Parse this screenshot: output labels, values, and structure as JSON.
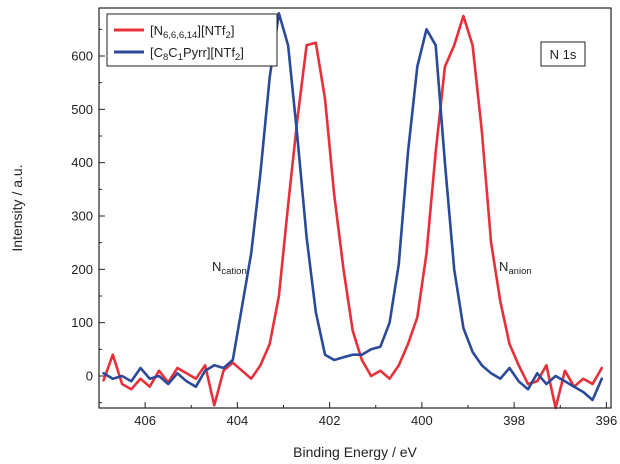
{
  "chart_data": {
    "type": "line",
    "xlabel": "Binding Energy / eV",
    "ylabel": "Intensity / a.u.",
    "xlim": [
      407.0,
      395.9
    ],
    "ylim": [
      -60,
      690
    ],
    "x_reversed": true,
    "x_ticks": [
      406,
      404,
      402,
      400,
      398,
      396
    ],
    "y_ticks": [
      0,
      100,
      200,
      300,
      400,
      500,
      600
    ],
    "panel_label": "N 1s",
    "legend_position": "top-left",
    "annotations": [
      {
        "main": "N",
        "sub": "cation",
        "x": 404.4,
        "y": 190
      },
      {
        "main": "N",
        "sub": "anion",
        "x": 398.5,
        "y": 190
      }
    ],
    "series": [
      {
        "color": "#e8303a",
        "legend": {
          "pre": "[N",
          "sub": "6,6,6,14",
          "mid": "][NTf",
          "sub2": "2",
          "post": "]"
        },
        "x": [
          406.9,
          406.7,
          406.5,
          406.3,
          406.1,
          405.9,
          405.7,
          405.5,
          405.3,
          405.1,
          404.9,
          404.7,
          404.5,
          404.3,
          404.1,
          403.9,
          403.7,
          403.5,
          403.3,
          403.1,
          402.9,
          402.7,
          402.5,
          402.3,
          402.1,
          401.9,
          401.7,
          401.5,
          401.3,
          401.1,
          400.9,
          400.7,
          400.5,
          400.3,
          400.1,
          399.9,
          399.7,
          399.5,
          399.3,
          399.1,
          398.9,
          398.7,
          398.5,
          398.3,
          398.1,
          397.9,
          397.7,
          397.5,
          397.3,
          397.1,
          396.9,
          396.7,
          396.5,
          396.3,
          396.1
        ],
        "y": [
          -8,
          40,
          -15,
          -25,
          -5,
          -20,
          10,
          -12,
          15,
          5,
          -5,
          20,
          -55,
          10,
          25,
          10,
          -5,
          20,
          60,
          150,
          320,
          480,
          620,
          625,
          520,
          340,
          200,
          85,
          30,
          0,
          10,
          -5,
          20,
          60,
          110,
          230,
          420,
          580,
          620,
          675,
          620,
          460,
          250,
          140,
          60,
          20,
          -15,
          -10,
          20,
          -60,
          10,
          -20,
          -5,
          -15,
          15
        ]
      },
      {
        "color": "#2b4a9a",
        "legend": {
          "pre": "[C",
          "sub": "8",
          "mid": "C",
          "sub2": "1",
          "post": "Pyrr][NTf",
          "sub3": "2",
          "post2": "]"
        },
        "x": [
          406.9,
          406.7,
          406.5,
          406.3,
          406.1,
          405.9,
          405.7,
          405.5,
          405.3,
          405.1,
          404.9,
          404.7,
          404.5,
          404.3,
          404.1,
          403.9,
          403.7,
          403.5,
          403.3,
          403.1,
          402.9,
          402.7,
          402.5,
          402.3,
          402.1,
          401.9,
          401.7,
          401.5,
          401.3,
          401.1,
          400.9,
          400.7,
          400.5,
          400.3,
          400.1,
          399.9,
          399.7,
          399.5,
          399.3,
          399.1,
          398.9,
          398.7,
          398.5,
          398.3,
          398.1,
          397.9,
          397.7,
          397.5,
          397.3,
          397.1,
          396.9,
          396.7,
          396.5,
          396.3,
          396.1
        ],
        "y": [
          5,
          -5,
          0,
          -10,
          15,
          -5,
          0,
          -15,
          5,
          -10,
          -20,
          10,
          20,
          15,
          30,
          130,
          230,
          380,
          560,
          680,
          620,
          450,
          260,
          120,
          40,
          30,
          35,
          40,
          40,
          50,
          55,
          100,
          210,
          420,
          580,
          650,
          620,
          400,
          200,
          90,
          45,
          20,
          5,
          -5,
          15,
          -10,
          -25,
          5,
          -15,
          0,
          -10,
          -20,
          -30,
          -45,
          -5
        ]
      }
    ]
  }
}
